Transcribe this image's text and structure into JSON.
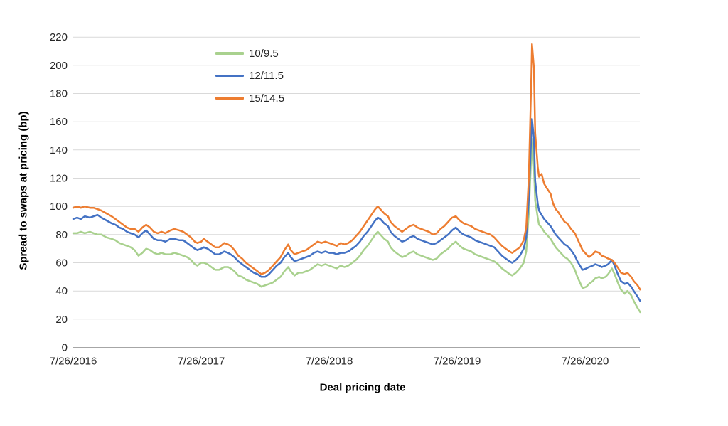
{
  "chart_data": {
    "type": "line",
    "title": "",
    "xlabel": "Deal pricing date",
    "ylabel": "Spread to swaps at pricing (bp)",
    "grid": "horizontal",
    "legend_position": "inside-top-left",
    "ylim": [
      0,
      220
    ],
    "y_ticks": [
      0,
      20,
      40,
      60,
      80,
      100,
      120,
      140,
      160,
      180,
      200,
      220
    ],
    "x_ticks": [
      {
        "t": 0,
        "label": "7/26/2016"
      },
      {
        "t": 1,
        "label": "7/26/2017"
      },
      {
        "t": 2,
        "label": "7/26/2018"
      },
      {
        "t": 3,
        "label": "7/26/2019"
      },
      {
        "t": 4,
        "label": "7/26/2020"
      }
    ],
    "x_unit": "years since 7/26/2016",
    "x": [
      0.0,
      0.03,
      0.06,
      0.09,
      0.13,
      0.16,
      0.19,
      0.22,
      0.26,
      0.3,
      0.33,
      0.36,
      0.39,
      0.42,
      0.45,
      0.48,
      0.51,
      0.54,
      0.57,
      0.6,
      0.63,
      0.66,
      0.69,
      0.72,
      0.76,
      0.79,
      0.83,
      0.86,
      0.89,
      0.92,
      0.95,
      0.97,
      1.0,
      1.02,
      1.05,
      1.08,
      1.11,
      1.14,
      1.18,
      1.21,
      1.23,
      1.26,
      1.29,
      1.32,
      1.35,
      1.38,
      1.41,
      1.44,
      1.47,
      1.5,
      1.53,
      1.56,
      1.59,
      1.62,
      1.65,
      1.68,
      1.7,
      1.73,
      1.76,
      1.79,
      1.82,
      1.85,
      1.88,
      1.91,
      1.94,
      1.97,
      2.0,
      2.03,
      2.06,
      2.09,
      2.12,
      2.15,
      2.18,
      2.21,
      2.24,
      2.27,
      2.3,
      2.33,
      2.36,
      2.38,
      2.4,
      2.43,
      2.46,
      2.48,
      2.51,
      2.54,
      2.57,
      2.6,
      2.63,
      2.66,
      2.69,
      2.72,
      2.75,
      2.78,
      2.81,
      2.84,
      2.87,
      2.9,
      2.93,
      2.96,
      2.99,
      3.02,
      3.05,
      3.08,
      3.11,
      3.14,
      3.17,
      3.2,
      3.23,
      3.26,
      3.29,
      3.32,
      3.35,
      3.38,
      3.41,
      3.43,
      3.46,
      3.49,
      3.52,
      3.54,
      3.56,
      3.58,
      3.585,
      3.6,
      3.61,
      3.63,
      3.64,
      3.66,
      3.68,
      3.7,
      3.73,
      3.75,
      3.77,
      3.79,
      3.81,
      3.84,
      3.86,
      3.89,
      3.92,
      3.94,
      3.96,
      3.98,
      4.01,
      4.03,
      4.06,
      4.08,
      4.11,
      4.13,
      4.16,
      4.18,
      4.21,
      4.23,
      4.26,
      4.28,
      4.31,
      4.33,
      4.36,
      4.38,
      4.41,
      4.43
    ],
    "series": [
      {
        "name": "10/9.5",
        "color": "#A9D18E",
        "values": [
          81,
          81,
          82,
          81,
          82,
          81,
          80,
          80,
          78,
          77,
          76,
          74,
          73,
          72,
          71,
          69,
          65,
          67,
          70,
          69,
          67,
          66,
          67,
          66,
          66,
          67,
          66,
          65,
          64,
          62,
          59,
          58,
          60,
          60,
          59,
          57,
          55,
          55,
          57,
          57,
          56,
          54,
          51,
          50,
          48,
          47,
          46,
          45,
          43,
          44,
          45,
          46,
          48,
          50,
          54,
          57,
          54,
          51,
          53,
          53,
          54,
          55,
          57,
          59,
          58,
          59,
          58,
          57,
          56,
          58,
          57,
          58,
          60,
          62,
          65,
          69,
          72,
          76,
          80,
          82,
          80,
          77,
          75,
          71,
          68,
          66,
          64,
          65,
          67,
          68,
          66,
          65,
          64,
          63,
          62,
          63,
          66,
          68,
          70,
          73,
          75,
          72,
          70,
          69,
          68,
          66,
          65,
          64,
          63,
          62,
          61,
          59,
          56,
          54,
          52,
          51,
          53,
          56,
          60,
          68,
          95,
          138,
          148,
          128,
          104,
          92,
          87,
          85,
          82,
          80,
          77,
          74,
          71,
          69,
          67,
          64,
          63,
          60,
          55,
          50,
          46,
          42,
          43,
          45,
          47,
          49,
          50,
          49,
          50,
          52,
          56,
          52,
          45,
          41,
          38,
          40,
          37,
          33,
          28,
          25
        ]
      },
      {
        "name": "12/11.5",
        "color": "#4472C4",
        "values": [
          91,
          92,
          91,
          93,
          92,
          93,
          94,
          92,
          90,
          88,
          87,
          85,
          84,
          82,
          81,
          80,
          78,
          81,
          83,
          80,
          77,
          76,
          76,
          75,
          77,
          77,
          76,
          76,
          74,
          72,
          70,
          69,
          70,
          71,
          70,
          68,
          66,
          66,
          68,
          67,
          66,
          64,
          61,
          59,
          57,
          55,
          53,
          52,
          50,
          50,
          52,
          55,
          58,
          60,
          64,
          67,
          64,
          61,
          62,
          63,
          64,
          65,
          67,
          68,
          67,
          68,
          67,
          67,
          66,
          67,
          67,
          68,
          70,
          72,
          75,
          79,
          82,
          86,
          90,
          92,
          91,
          88,
          86,
          82,
          79,
          77,
          75,
          76,
          78,
          79,
          77,
          76,
          75,
          74,
          73,
          74,
          76,
          78,
          80,
          83,
          85,
          82,
          80,
          79,
          78,
          76,
          75,
          74,
          73,
          72,
          71,
          68,
          65,
          63,
          61,
          60,
          62,
          65,
          70,
          78,
          105,
          152,
          162,
          148,
          118,
          102,
          97,
          94,
          91,
          89,
          86,
          83,
          80,
          78,
          76,
          73,
          72,
          69,
          65,
          61,
          58,
          55,
          56,
          57,
          58,
          59,
          58,
          57,
          58,
          59,
          62,
          58,
          51,
          47,
          45,
          46,
          43,
          40,
          36,
          33
        ]
      },
      {
        "name": "15/14.5",
        "color": "#ED7D31",
        "values": [
          99,
          100,
          99,
          100,
          99,
          99,
          98,
          97,
          95,
          93,
          91,
          89,
          87,
          85,
          84,
          84,
          82,
          85,
          87,
          85,
          82,
          81,
          82,
          81,
          83,
          84,
          83,
          82,
          80,
          78,
          75,
          74,
          75,
          77,
          75,
          73,
          71,
          71,
          74,
          73,
          72,
          69,
          65,
          63,
          60,
          58,
          56,
          54,
          52,
          53,
          55,
          58,
          61,
          64,
          69,
          73,
          69,
          66,
          67,
          68,
          69,
          71,
          73,
          75,
          74,
          75,
          74,
          73,
          72,
          74,
          73,
          74,
          76,
          79,
          82,
          86,
          90,
          94,
          98,
          100,
          98,
          95,
          93,
          89,
          86,
          84,
          82,
          84,
          86,
          87,
          85,
          84,
          83,
          82,
          80,
          81,
          84,
          86,
          89,
          92,
          93,
          90,
          88,
          87,
          86,
          84,
          83,
          82,
          81,
          80,
          78,
          75,
          72,
          70,
          68,
          67,
          69,
          71,
          76,
          85,
          120,
          192,
          215,
          198,
          152,
          128,
          121,
          123,
          116,
          113,
          109,
          102,
          98,
          96,
          93,
          89,
          88,
          84,
          81,
          77,
          73,
          69,
          66,
          64,
          66,
          68,
          67,
          65,
          64,
          63,
          62,
          60,
          56,
          53,
          52,
          53,
          50,
          47,
          44,
          41
        ]
      }
    ],
    "colors": {
      "gridline": "#D9D9D9",
      "axis_line": "#A6A6A6",
      "tick_text": "#262626"
    }
  }
}
